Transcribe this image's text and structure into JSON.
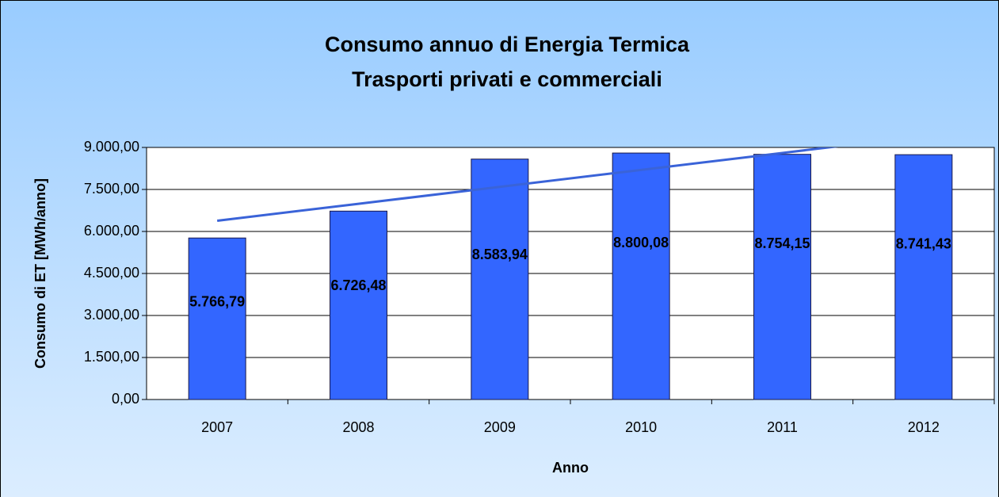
{
  "chart_data": {
    "type": "bar",
    "title": "Consumo annuo di Energia Termica",
    "subtitle": "Trasporti privati e commerciali",
    "x_label": "Anno",
    "y_label": "Consumo di ET [MWh/anno]",
    "categories": [
      "2007",
      "2008",
      "2009",
      "2010",
      "2011",
      "2012"
    ],
    "values": [
      5766.79,
      6726.48,
      8583.94,
      8800.08,
      8754.15,
      8741.43
    ],
    "value_labels": [
      "5.766,79",
      "6.726,48",
      "8.583,94",
      "8.800,08",
      "8.754,15",
      "8.741,43"
    ],
    "color": "#3366ff",
    "trend": {
      "color": "#3a63d8",
      "values": [
        6383,
        6988,
        7593,
        8198,
        8803,
        9407
      ]
    },
    "ylim": [
      0,
      9000
    ],
    "yticks": [
      {
        "value": 0,
        "label": "0,00"
      },
      {
        "value": 1500,
        "label": "1.500,00"
      },
      {
        "value": 3000,
        "label": "3.000,00"
      },
      {
        "value": 4500,
        "label": "4.500,00"
      },
      {
        "value": 6000,
        "label": "6.000,00"
      },
      {
        "value": 7500,
        "label": "7.500,00"
      },
      {
        "value": 9000,
        "label": "9.000,00"
      }
    ],
    "grid": true
  }
}
